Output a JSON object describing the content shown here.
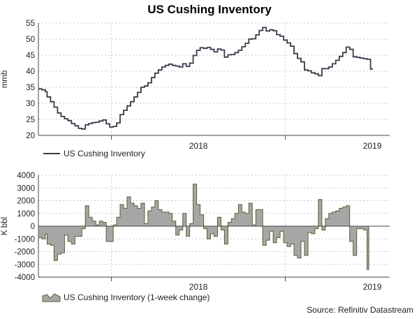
{
  "title": "US Cushing Inventory",
  "source": "Source: Refinitiv Datastream",
  "colors": {
    "level_line": "#3a3a4a",
    "change_fill": "#a6a6a6",
    "change_stroke": "#5d5d2f",
    "grid": "#c8c8c8",
    "axis": "#444444"
  },
  "chart_data": [
    {
      "type": "line",
      "ylabel": "mmb",
      "ylim": [
        20,
        55
      ],
      "yticks": [
        20,
        25,
        30,
        35,
        40,
        45,
        50,
        55
      ],
      "xlim": [
        2017.58,
        2019.6
      ],
      "year_boundaries": [
        2018.0,
        2019.0
      ],
      "xtick_labels": [
        {
          "label": "2018",
          "x": 2018.5
        },
        {
          "label": "2019",
          "x": 2019.5
        }
      ],
      "grid": true,
      "legend": "US Cushing Inventory",
      "series": [
        {
          "name": "US Cushing Inventory",
          "points": [
            [
              2017.58,
              34.5
            ],
            [
              2017.6,
              34.2
            ],
            [
              2017.62,
              33.6
            ],
            [
              2017.63,
              32.0
            ],
            [
              2017.65,
              30.5
            ],
            [
              2017.67,
              28.8
            ],
            [
              2017.69,
              27.0
            ],
            [
              2017.71,
              25.9
            ],
            [
              2017.73,
              25.2
            ],
            [
              2017.75,
              24.6
            ],
            [
              2017.77,
              23.7
            ],
            [
              2017.79,
              23.0
            ],
            [
              2017.81,
              22.2
            ],
            [
              2017.83,
              22.0
            ],
            [
              2017.85,
              23.3
            ],
            [
              2017.87,
              23.7
            ],
            [
              2017.89,
              24.0
            ],
            [
              2017.91,
              24.1
            ],
            [
              2017.93,
              24.5
            ],
            [
              2017.95,
              24.8
            ],
            [
              2017.97,
              23.6
            ],
            [
              2017.99,
              22.6
            ],
            [
              2018.01,
              22.8
            ],
            [
              2018.03,
              23.9
            ],
            [
              2018.05,
              26.5
            ],
            [
              2018.07,
              27.8
            ],
            [
              2018.09,
              29.2
            ],
            [
              2018.11,
              30.5
            ],
            [
              2018.13,
              32.0
            ],
            [
              2018.15,
              33.4
            ],
            [
              2018.17,
              35.0
            ],
            [
              2018.19,
              35.4
            ],
            [
              2018.21,
              36.4
            ],
            [
              2018.23,
              38.0
            ],
            [
              2018.25,
              39.4
            ],
            [
              2018.27,
              40.4
            ],
            [
              2018.29,
              41.3
            ],
            [
              2018.31,
              41.8
            ],
            [
              2018.33,
              42.2
            ],
            [
              2018.35,
              41.8
            ],
            [
              2018.37,
              41.6
            ],
            [
              2018.39,
              41.3
            ],
            [
              2018.41,
              42.3
            ],
            [
              2018.43,
              41.5
            ],
            [
              2018.45,
              42.5
            ],
            [
              2018.47,
              44.9
            ],
            [
              2018.49,
              46.5
            ],
            [
              2018.51,
              47.3
            ],
            [
              2018.53,
              47.1
            ],
            [
              2018.55,
              47.4
            ],
            [
              2018.57,
              46.8
            ],
            [
              2018.59,
              46.0
            ],
            [
              2018.61,
              46.9
            ],
            [
              2018.63,
              46.6
            ],
            [
              2018.65,
              44.4
            ],
            [
              2018.67,
              45.1
            ],
            [
              2018.69,
              45.2
            ],
            [
              2018.71,
              45.8
            ],
            [
              2018.73,
              46.5
            ],
            [
              2018.75,
              47.6
            ],
            [
              2018.77,
              48.7
            ],
            [
              2018.79,
              50.0
            ],
            [
              2018.81,
              50.1
            ],
            [
              2018.83,
              51.3
            ],
            [
              2018.85,
              52.7
            ],
            [
              2018.87,
              53.6
            ],
            [
              2018.89,
              52.5
            ],
            [
              2018.91,
              52.9
            ],
            [
              2018.93,
              52.6
            ],
            [
              2018.95,
              51.4
            ],
            [
              2018.97,
              50.9
            ],
            [
              2018.99,
              49.7
            ],
            [
              2019.01,
              48.8
            ],
            [
              2019.03,
              47.8
            ],
            [
              2019.05,
              45.5
            ],
            [
              2019.07,
              44.0
            ],
            [
              2019.09,
              42.9
            ],
            [
              2019.11,
              40.4
            ],
            [
              2019.13,
              40.1
            ],
            [
              2019.15,
              39.5
            ],
            [
              2019.17,
              39.2
            ],
            [
              2019.19,
              38.6
            ],
            [
              2019.21,
              40.8
            ],
            [
              2019.23,
              40.8
            ],
            [
              2019.25,
              41.3
            ],
            [
              2019.27,
              42.3
            ],
            [
              2019.29,
              43.4
            ],
            [
              2019.31,
              44.6
            ],
            [
              2019.33,
              45.8
            ],
            [
              2019.35,
              47.5
            ],
            [
              2019.37,
              46.8
            ],
            [
              2019.39,
              44.5
            ],
            [
              2019.41,
              44.3
            ],
            [
              2019.43,
              44.1
            ],
            [
              2019.45,
              43.9
            ],
            [
              2019.47,
              43.7
            ],
            [
              2019.49,
              40.7
            ],
            [
              2019.5,
              40.5
            ]
          ]
        }
      ]
    },
    {
      "type": "area",
      "ylabel": "K bbl",
      "ylim": [
        -4000,
        4000
      ],
      "yticks": [
        -4000,
        -3000,
        -2000,
        -1000,
        0,
        1000,
        2000,
        3000,
        4000
      ],
      "xlim": [
        2017.58,
        2019.6
      ],
      "year_boundaries": [
        2018.0,
        2019.0
      ],
      "xtick_labels": [
        {
          "label": "2018",
          "x": 2018.5
        },
        {
          "label": "2019",
          "x": 2019.5
        }
      ],
      "grid": true,
      "legend": "US Cushing Inventory (1-week change)",
      "series": [
        {
          "name": "US Cushing Inventory (1-week change)",
          "points": [
            [
              2017.58,
              -900
            ],
            [
              2017.6,
              -1000
            ],
            [
              2017.62,
              -600
            ],
            [
              2017.63,
              -1400
            ],
            [
              2017.65,
              -1500
            ],
            [
              2017.67,
              -2700
            ],
            [
              2017.69,
              -2200
            ],
            [
              2017.71,
              -2100
            ],
            [
              2017.73,
              -700
            ],
            [
              2017.75,
              -1200
            ],
            [
              2017.77,
              -1400
            ],
            [
              2017.79,
              -800
            ],
            [
              2017.81,
              -800
            ],
            [
              2017.83,
              -200
            ],
            [
              2017.85,
              1600
            ],
            [
              2017.87,
              700
            ],
            [
              2017.89,
              400
            ],
            [
              2017.91,
              100
            ],
            [
              2017.93,
              400
            ],
            [
              2017.95,
              300
            ],
            [
              2017.97,
              -1200
            ],
            [
              2017.99,
              -1200
            ],
            [
              2018.01,
              100
            ],
            [
              2018.03,
              700
            ],
            [
              2018.05,
              1700
            ],
            [
              2018.07,
              1400
            ],
            [
              2018.09,
              2300
            ],
            [
              2018.11,
              1800
            ],
            [
              2018.13,
              1600
            ],
            [
              2018.15,
              1400
            ],
            [
              2018.17,
              1800
            ],
            [
              2018.19,
              200
            ],
            [
              2018.21,
              1200
            ],
            [
              2018.23,
              1500
            ],
            [
              2018.25,
              2000
            ],
            [
              2018.27,
              1300
            ],
            [
              2018.29,
              1100
            ],
            [
              2018.31,
              1100
            ],
            [
              2018.33,
              1000
            ],
            [
              2018.35,
              400
            ],
            [
              2018.37,
              -700
            ],
            [
              2018.39,
              -300
            ],
            [
              2018.41,
              1000
            ],
            [
              2018.43,
              -800
            ],
            [
              2018.45,
              200
            ],
            [
              2018.47,
              3300
            ],
            [
              2018.49,
              1700
            ],
            [
              2018.51,
              900
            ],
            [
              2018.53,
              -200
            ],
            [
              2018.55,
              -1000
            ],
            [
              2018.57,
              -600
            ],
            [
              2018.59,
              -800
            ],
            [
              2018.61,
              700
            ],
            [
              2018.63,
              -300
            ],
            [
              2018.65,
              -1400
            ],
            [
              2018.67,
              300
            ],
            [
              2018.69,
              600
            ],
            [
              2018.71,
              1000
            ],
            [
              2018.73,
              1700
            ],
            [
              2018.75,
              1100
            ],
            [
              2018.77,
              1000
            ],
            [
              2018.79,
              1800
            ],
            [
              2018.81,
              100
            ],
            [
              2018.83,
              1300
            ],
            [
              2018.85,
              1300
            ],
            [
              2018.87,
              -1500
            ],
            [
              2018.89,
              -1100
            ],
            [
              2018.91,
              -400
            ],
            [
              2018.93,
              -1300
            ],
            [
              2018.95,
              -900
            ],
            [
              2018.97,
              -400
            ],
            [
              2018.99,
              -1300
            ],
            [
              2019.01,
              -1600
            ],
            [
              2019.03,
              -1400
            ],
            [
              2019.05,
              -2300
            ],
            [
              2019.07,
              -2500
            ],
            [
              2019.09,
              -1200
            ],
            [
              2019.11,
              -2300
            ],
            [
              2019.13,
              -500
            ],
            [
              2019.15,
              -600
            ],
            [
              2019.17,
              -200
            ],
            [
              2019.19,
              2100
            ],
            [
              2019.21,
              -300
            ],
            [
              2019.23,
              600
            ],
            [
              2019.25,
              1000
            ],
            [
              2019.27,
              1100
            ],
            [
              2019.29,
              1200
            ],
            [
              2019.31,
              1400
            ],
            [
              2019.33,
              1500
            ],
            [
              2019.35,
              1600
            ],
            [
              2019.37,
              -1200
            ],
            [
              2019.39,
              -2300
            ],
            [
              2019.41,
              -200
            ],
            [
              2019.43,
              -200
            ],
            [
              2019.45,
              -300
            ],
            [
              2019.47,
              -3400
            ],
            [
              2019.48,
              -3400
            ]
          ]
        }
      ]
    }
  ]
}
